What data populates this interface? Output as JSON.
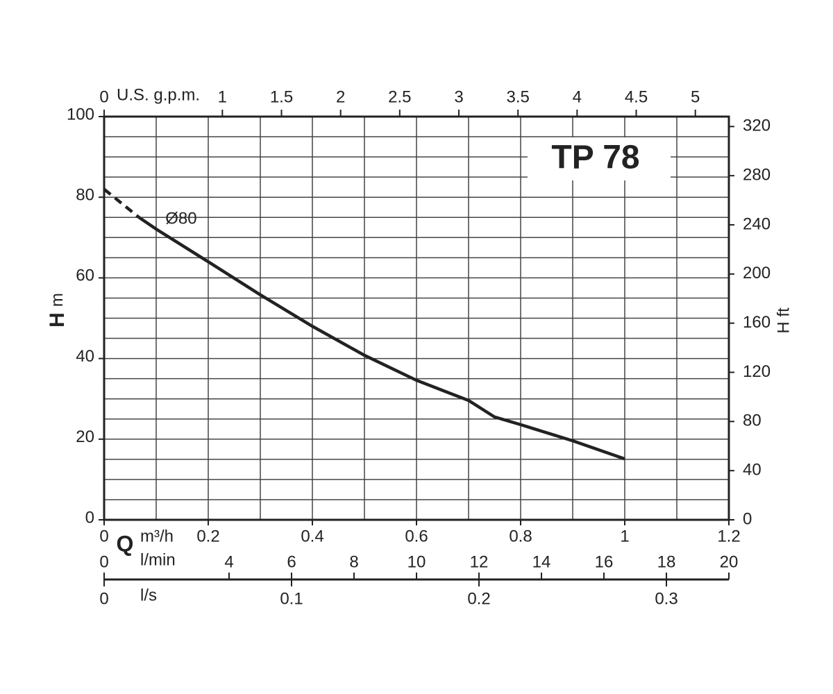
{
  "chart_data": {
    "type": "line",
    "title": "TP 78",
    "ylabel_symbol": "H",
    "ylabel_unit": "m",
    "xlabel_symbol": "Q",
    "xlabel_unit": "m³/h",
    "y2label": "H ft",
    "x": [
      0,
      0.067,
      0.1,
      0.2,
      0.3,
      0.4,
      0.5,
      0.6,
      0.7,
      0.75,
      0.8,
      0.9,
      1.0
    ],
    "series": [
      {
        "color": "#222222",
        "dashed": true,
        "values": [
          82,
          75,
          null,
          null,
          null,
          null,
          null,
          null,
          null,
          null,
          null,
          null,
          null
        ]
      },
      {
        "name": "Ø80",
        "color": "#222222",
        "dashed": false,
        "values": [
          null,
          75,
          72.1,
          64,
          55.8,
          48,
          40.8,
          34.6,
          29.6,
          25.5,
          23.6,
          19.6,
          15.1
        ]
      }
    ],
    "xlim": [
      0,
      1.2
    ],
    "xticks": [
      0,
      0.2,
      0.4,
      0.6,
      0.8,
      1,
      1.2
    ],
    "ylim": [
      0,
      100
    ],
    "yticks": [
      0,
      20,
      40,
      60,
      80,
      100
    ],
    "y2lim": [
      0,
      328.08
    ],
    "y2ticks": [
      0,
      40,
      80,
      120,
      160,
      200,
      240,
      280,
      320
    ],
    "xgrid": [
      0,
      0.1,
      0.2,
      0.3,
      0.4,
      0.5,
      0.6,
      0.7,
      0.8,
      0.9,
      1.0,
      1.1,
      1.2
    ],
    "ygrid": [
      0,
      5,
      10,
      15,
      20,
      25,
      30,
      35,
      40,
      45,
      50,
      55,
      60,
      65,
      70,
      75,
      80,
      85,
      90,
      95,
      100
    ],
    "secondary_x_axes": [
      {
        "side": "top",
        "label": "U.S. g.p.m.",
        "lim": [
          0,
          5.2836
        ],
        "ticks": [
          0,
          1,
          1.5,
          2,
          2.5,
          3,
          3.5,
          4,
          4.5,
          5
        ]
      },
      {
        "side": "bottom",
        "label": "l/min",
        "lim": [
          0,
          20
        ],
        "ticks": [
          0,
          4,
          6,
          8,
          10,
          12,
          14,
          16,
          18,
          20
        ]
      },
      {
        "side": "bottom",
        "label": "l/s",
        "lim": [
          0,
          0.33333
        ],
        "ticks": [
          0,
          0.1,
          0.2,
          0.3
        ]
      }
    ]
  }
}
